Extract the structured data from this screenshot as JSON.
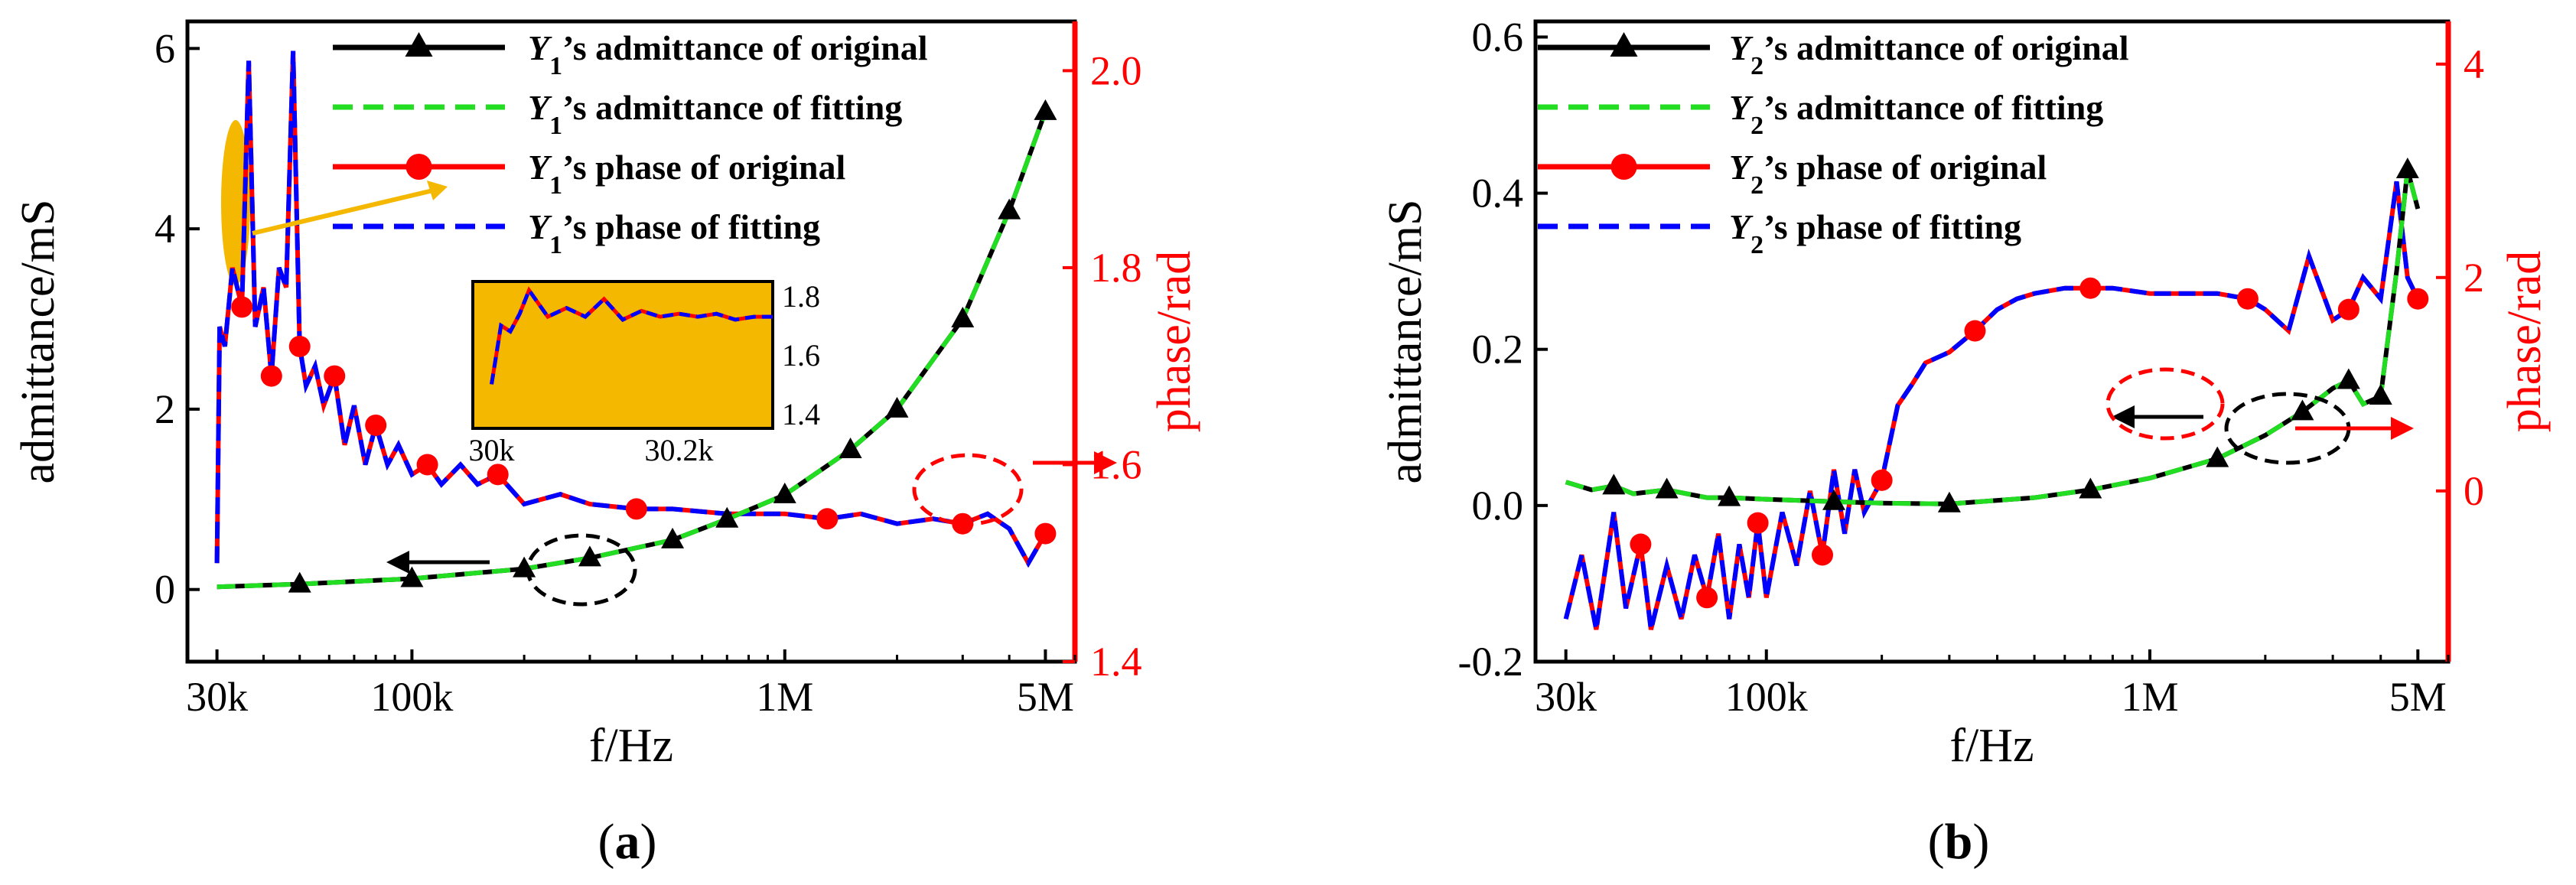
{
  "chart_data": [
    {
      "type": "line",
      "panel_label": "a",
      "xlabel": "f/Hz",
      "ylabel": "admittance/mS",
      "y2label": "phase/rad",
      "xscale": "log",
      "xlim": [
        25000,
        6000000
      ],
      "ylim": [
        -0.8,
        6.3
      ],
      "y2lim": [
        1.4,
        2.05
      ],
      "xticks": [
        30000,
        100000,
        1000000,
        5000000
      ],
      "xtick_labels": [
        "30k",
        "100k",
        "1M",
        "5M"
      ],
      "yticks": [
        0,
        2,
        4,
        6
      ],
      "ytick_labels": [
        "0",
        "2",
        "4",
        "6"
      ],
      "y2ticks": [
        1.4,
        1.6,
        1.8,
        2.0
      ],
      "y2tick_labels": [
        "1.4",
        "1.6",
        "1.8",
        "2.0"
      ],
      "legend": [
        {
          "label_sub": "1",
          "label_rest": "’s admittance of original",
          "color": "#000000",
          "dash": "solid",
          "marker": "triangle"
        },
        {
          "label_sub": "1",
          "label_rest": "’s admittance of fitting",
          "color": "#22dd22",
          "dash": "dashed",
          "marker": "none"
        },
        {
          "label_sub": "1",
          "label_rest": "’s phase of original",
          "color": "#ff0000",
          "dash": "solid",
          "marker": "circle"
        },
        {
          "label_sub": "1",
          "label_rest": "’s phase of fitting",
          "color": "#0000ff",
          "dash": "dashed",
          "marker": "none"
        }
      ],
      "legend_symbol": "Y",
      "series": [
        {
          "name": "admittance",
          "axis": "left",
          "x": [
            30000,
            50000,
            100000,
            200000,
            300000,
            500000,
            700000,
            1000000,
            1500000,
            2000000,
            3000000,
            4000000,
            5000000
          ],
          "y": [
            0.03,
            0.06,
            0.12,
            0.23,
            0.35,
            0.55,
            0.78,
            1.05,
            1.55,
            2.0,
            3.0,
            4.2,
            5.3
          ]
        },
        {
          "name": "phase",
          "axis": "right",
          "x": [
            30000,
            30500,
            31500,
            33000,
            35000,
            36500,
            38000,
            40000,
            42000,
            44000,
            46000,
            48000,
            50000,
            52000,
            55000,
            58000,
            62000,
            66000,
            70000,
            75000,
            80000,
            86000,
            92000,
            100000,
            110000,
            120000,
            135000,
            150000,
            170000,
            200000,
            250000,
            300000,
            400000,
            500000,
            700000,
            1000000,
            1300000,
            1600000,
            2000000,
            2500000,
            3000000,
            3500000,
            4000000,
            4500000,
            5000000
          ],
          "y": [
            1.5,
            1.74,
            1.72,
            1.8,
            1.76,
            2.01,
            1.74,
            1.78,
            1.69,
            1.8,
            1.78,
            2.02,
            1.72,
            1.68,
            1.7,
            1.66,
            1.69,
            1.62,
            1.66,
            1.6,
            1.64,
            1.6,
            1.62,
            1.59,
            1.6,
            1.58,
            1.6,
            1.58,
            1.59,
            1.56,
            1.57,
            1.56,
            1.555,
            1.555,
            1.55,
            1.55,
            1.545,
            1.55,
            1.54,
            1.545,
            1.54,
            1.55,
            1.535,
            1.5,
            1.53
          ]
        }
      ],
      "inset": {
        "xticks": [
          30000,
          30200
        ],
        "xtick_labels": [
          "30k",
          "30.2k"
        ],
        "yticks": [
          1.4,
          1.6,
          1.8
        ],
        "ytick_labels": [
          "1.4",
          "1.6",
          "1.8"
        ],
        "xlim": [
          29980,
          30300
        ],
        "ylim": [
          1.35,
          1.85
        ],
        "x": [
          30000,
          30010,
          30020,
          30030,
          30040,
          30060,
          30080,
          30100,
          30120,
          30140,
          30160,
          30180,
          30200,
          30220,
          30240,
          30260,
          30280,
          30300
        ],
        "y": [
          1.5,
          1.7,
          1.68,
          1.74,
          1.82,
          1.73,
          1.76,
          1.73,
          1.79,
          1.72,
          1.75,
          1.73,
          1.74,
          1.73,
          1.74,
          1.72,
          1.73,
          1.73
        ]
      },
      "caption": "a"
    },
    {
      "type": "line",
      "panel_label": "b",
      "xlabel": "f/Hz",
      "ylabel": "admittance/mS",
      "y2label": "phase/rad",
      "xscale": "log",
      "xlim": [
        25000,
        6000000
      ],
      "ylim": [
        -0.2,
        0.62
      ],
      "y2lim": [
        -1.6,
        4.4
      ],
      "xticks": [
        30000,
        100000,
        1000000,
        5000000
      ],
      "xtick_labels": [
        "30k",
        "100k",
        "1M",
        "5M"
      ],
      "yticks": [
        -0.2,
        0.0,
        0.2,
        0.4,
        0.6
      ],
      "ytick_labels": [
        "-0.2",
        "0.0",
        "0.2",
        "0.4",
        "0.6"
      ],
      "y2ticks": [
        0,
        2,
        4
      ],
      "y2tick_labels": [
        "0",
        "2",
        "4"
      ],
      "legend": [
        {
          "label_sub": "2",
          "label_rest": "’s admittance of original",
          "color": "#000000",
          "dash": "solid",
          "marker": "triangle"
        },
        {
          "label_sub": "2",
          "label_rest": "’s admittance of fitting",
          "color": "#22dd22",
          "dash": "dashed",
          "marker": "none"
        },
        {
          "label_sub": "2",
          "label_rest": "’s phase of original",
          "color": "#ff0000",
          "dash": "solid",
          "marker": "circle"
        },
        {
          "label_sub": "2",
          "label_rest": "’s phase of fitting",
          "color": "#0000ff",
          "dash": "dashed",
          "marker": "none"
        }
      ],
      "legend_symbol": "Y",
      "series": [
        {
          "name": "admittance",
          "axis": "left",
          "x": [
            30000,
            35000,
            40000,
            45000,
            55000,
            70000,
            80000,
            100000,
            150000,
            200000,
            300000,
            500000,
            700000,
            1000000,
            1500000,
            2000000,
            2500000,
            3000000,
            3300000,
            3600000,
            4000000,
            4400000,
            4700000,
            5000000
          ],
          "y": [
            0.03,
            0.02,
            0.025,
            0.015,
            0.02,
            0.01,
            0.01,
            0.008,
            0.005,
            0.003,
            0.002,
            0.01,
            0.02,
            0.035,
            0.06,
            0.09,
            0.12,
            0.15,
            0.16,
            0.13,
            0.14,
            0.3,
            0.43,
            0.38
          ]
        },
        {
          "name": "phase",
          "axis": "right",
          "x": [
            30000,
            33000,
            36000,
            40000,
            43000,
            47000,
            50000,
            55000,
            60000,
            65000,
            70000,
            75000,
            80000,
            85000,
            90000,
            95000,
            100000,
            110000,
            120000,
            130000,
            140000,
            150000,
            160000,
            170000,
            180000,
            200000,
            220000,
            240000,
            260000,
            300000,
            350000,
            400000,
            450000,
            500000,
            600000,
            700000,
            800000,
            1000000,
            1200000,
            1500000,
            1800000,
            2000000,
            2300000,
            2600000,
            3000000,
            3300000,
            3600000,
            4000000,
            4400000,
            4700000,
            5000000
          ],
          "y": [
            -1.2,
            -0.6,
            -1.3,
            -0.2,
            -1.1,
            -0.5,
            -1.3,
            -0.7,
            -1.2,
            -0.6,
            -1.0,
            -0.4,
            -1.2,
            -0.5,
            -1.0,
            -0.3,
            -1.0,
            -0.2,
            -0.7,
            0.0,
            -0.6,
            0.2,
            -0.4,
            0.2,
            -0.2,
            0.1,
            0.8,
            1.0,
            1.2,
            1.3,
            1.5,
            1.7,
            1.8,
            1.85,
            1.9,
            1.9,
            1.9,
            1.85,
            1.85,
            1.85,
            1.8,
            1.7,
            1.5,
            2.2,
            1.6,
            1.7,
            2.0,
            1.8,
            2.9,
            2.0,
            1.8
          ]
        }
      ],
      "caption": "b"
    }
  ]
}
